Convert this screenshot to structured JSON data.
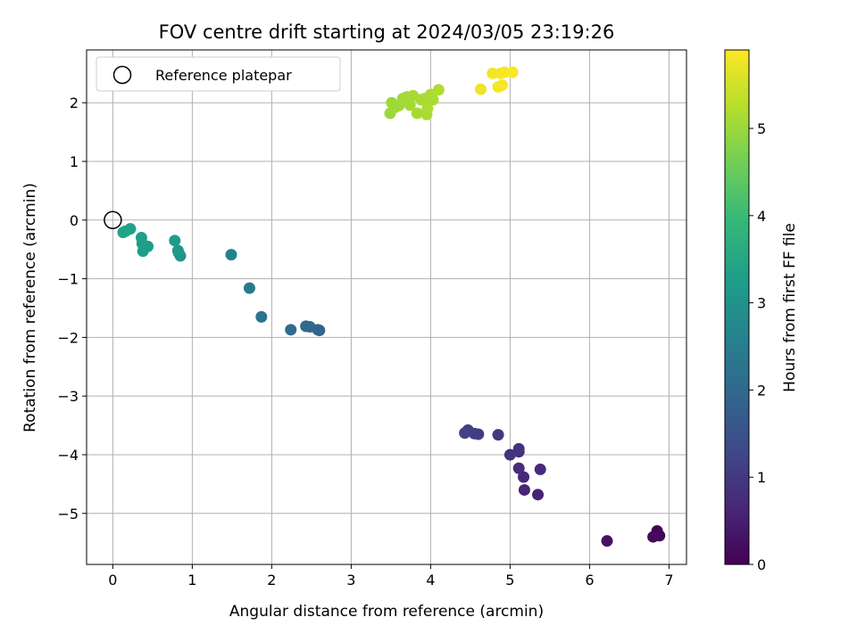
{
  "chart_data": {
    "type": "scatter",
    "title": "FOV centre drift starting at 2024/03/05 23:19:26",
    "xlabel": "Angular distance from reference (arcmin)",
    "ylabel": "Rotation from reference (arcmin)",
    "xlim": [
      -0.33,
      7.22
    ],
    "ylim": [
      -5.87,
      2.9
    ],
    "xticks": [
      0,
      1,
      2,
      3,
      4,
      5,
      6,
      7
    ],
    "yticks": [
      -5,
      -4,
      -3,
      -2,
      -1,
      0,
      1,
      2
    ],
    "grid": true,
    "legend": {
      "placement": "top-left",
      "label": "Reference platepar"
    },
    "reference_point": {
      "x": 0,
      "y": 0
    },
    "colorbar": {
      "label": "Hours from first FF file",
      "range": [
        0,
        5.9
      ],
      "ticks": [
        0,
        1,
        2,
        3,
        4,
        5
      ],
      "colormap": "viridis"
    },
    "colormap_stops": [
      "#440154",
      "#482878",
      "#3e4989",
      "#31688e",
      "#26828e",
      "#1f9e89",
      "#35b779",
      "#6ece58",
      "#b5de2b",
      "#fde725"
    ],
    "reference_marker_color": "#000000",
    "points": [
      {
        "x": 6.85,
        "y": -5.3,
        "c": 0.05
      },
      {
        "x": 6.88,
        "y": -5.38,
        "c": 0.1
      },
      {
        "x": 6.8,
        "y": -5.4,
        "c": 0.15
      },
      {
        "x": 6.22,
        "y": -5.47,
        "c": 0.3
      },
      {
        "x": 5.35,
        "y": -4.68,
        "c": 0.55
      },
      {
        "x": 5.18,
        "y": -4.6,
        "c": 0.6
      },
      {
        "x": 5.17,
        "y": -4.38,
        "c": 0.65
      },
      {
        "x": 5.38,
        "y": -4.25,
        "c": 0.7
      },
      {
        "x": 5.11,
        "y": -4.23,
        "c": 0.75
      },
      {
        "x": 5.11,
        "y": -3.95,
        "c": 0.8
      },
      {
        "x": 5.11,
        "y": -3.9,
        "c": 0.85
      },
      {
        "x": 5.0,
        "y": -4.0,
        "c": 0.9
      },
      {
        "x": 4.85,
        "y": -3.66,
        "c": 1.0
      },
      {
        "x": 4.6,
        "y": -3.65,
        "c": 1.05
      },
      {
        "x": 4.55,
        "y": -3.64,
        "c": 1.1
      },
      {
        "x": 4.47,
        "y": -3.58,
        "c": 1.15
      },
      {
        "x": 4.43,
        "y": -3.63,
        "c": 1.2
      },
      {
        "x": 2.6,
        "y": -1.88,
        "c": 1.85
      },
      {
        "x": 2.58,
        "y": -1.87,
        "c": 1.9
      },
      {
        "x": 2.48,
        "y": -1.82,
        "c": 1.95
      },
      {
        "x": 2.43,
        "y": -1.81,
        "c": 2.0
      },
      {
        "x": 2.24,
        "y": -1.87,
        "c": 2.05
      },
      {
        "x": 1.87,
        "y": -1.65,
        "c": 2.25
      },
      {
        "x": 1.72,
        "y": -1.16,
        "c": 2.4
      },
      {
        "x": 1.49,
        "y": -0.59,
        "c": 2.6
      },
      {
        "x": 0.85,
        "y": -0.61,
        "c": 3.05
      },
      {
        "x": 0.83,
        "y": -0.56,
        "c": 3.1
      },
      {
        "x": 0.82,
        "y": -0.52,
        "c": 3.15
      },
      {
        "x": 0.78,
        "y": -0.35,
        "c": 3.2
      },
      {
        "x": 0.44,
        "y": -0.45,
        "c": 3.25
      },
      {
        "x": 0.38,
        "y": -0.53,
        "c": 3.25
      },
      {
        "x": 0.37,
        "y": -0.4,
        "c": 3.3
      },
      {
        "x": 0.36,
        "y": -0.3,
        "c": 3.3
      },
      {
        "x": 0.22,
        "y": -0.15,
        "c": 3.35
      },
      {
        "x": 0.16,
        "y": -0.19,
        "c": 3.35
      },
      {
        "x": 0.13,
        "y": -0.21,
        "c": 3.4
      },
      {
        "x": 3.49,
        "y": 1.82,
        "c": 5.0
      },
      {
        "x": 3.51,
        "y": 2.0,
        "c": 5.02
      },
      {
        "x": 3.55,
        "y": 1.92,
        "c": 5.03
      },
      {
        "x": 3.6,
        "y": 1.95,
        "c": 5.05
      },
      {
        "x": 3.65,
        "y": 2.07,
        "c": 5.06
      },
      {
        "x": 3.7,
        "y": 2.1,
        "c": 5.08
      },
      {
        "x": 3.74,
        "y": 1.96,
        "c": 5.09
      },
      {
        "x": 3.78,
        "y": 2.12,
        "c": 5.1
      },
      {
        "x": 3.83,
        "y": 1.82,
        "c": 5.11
      },
      {
        "x": 3.88,
        "y": 2.05,
        "c": 5.12
      },
      {
        "x": 3.92,
        "y": 2.07,
        "c": 5.13
      },
      {
        "x": 3.95,
        "y": 1.8,
        "c": 5.14
      },
      {
        "x": 3.96,
        "y": 1.9,
        "c": 5.15
      },
      {
        "x": 4.0,
        "y": 2.14,
        "c": 5.16
      },
      {
        "x": 4.03,
        "y": 2.05,
        "c": 5.17
      },
      {
        "x": 4.1,
        "y": 2.22,
        "c": 5.18
      },
      {
        "x": 4.63,
        "y": 2.23,
        "c": 5.75
      },
      {
        "x": 4.78,
        "y": 2.5,
        "c": 5.8
      },
      {
        "x": 4.85,
        "y": 2.27,
        "c": 5.82
      },
      {
        "x": 4.88,
        "y": 2.5,
        "c": 5.83
      },
      {
        "x": 4.9,
        "y": 2.3,
        "c": 5.84
      },
      {
        "x": 4.93,
        "y": 2.52,
        "c": 5.85
      },
      {
        "x": 5.03,
        "y": 2.52,
        "c": 5.87
      }
    ]
  }
}
